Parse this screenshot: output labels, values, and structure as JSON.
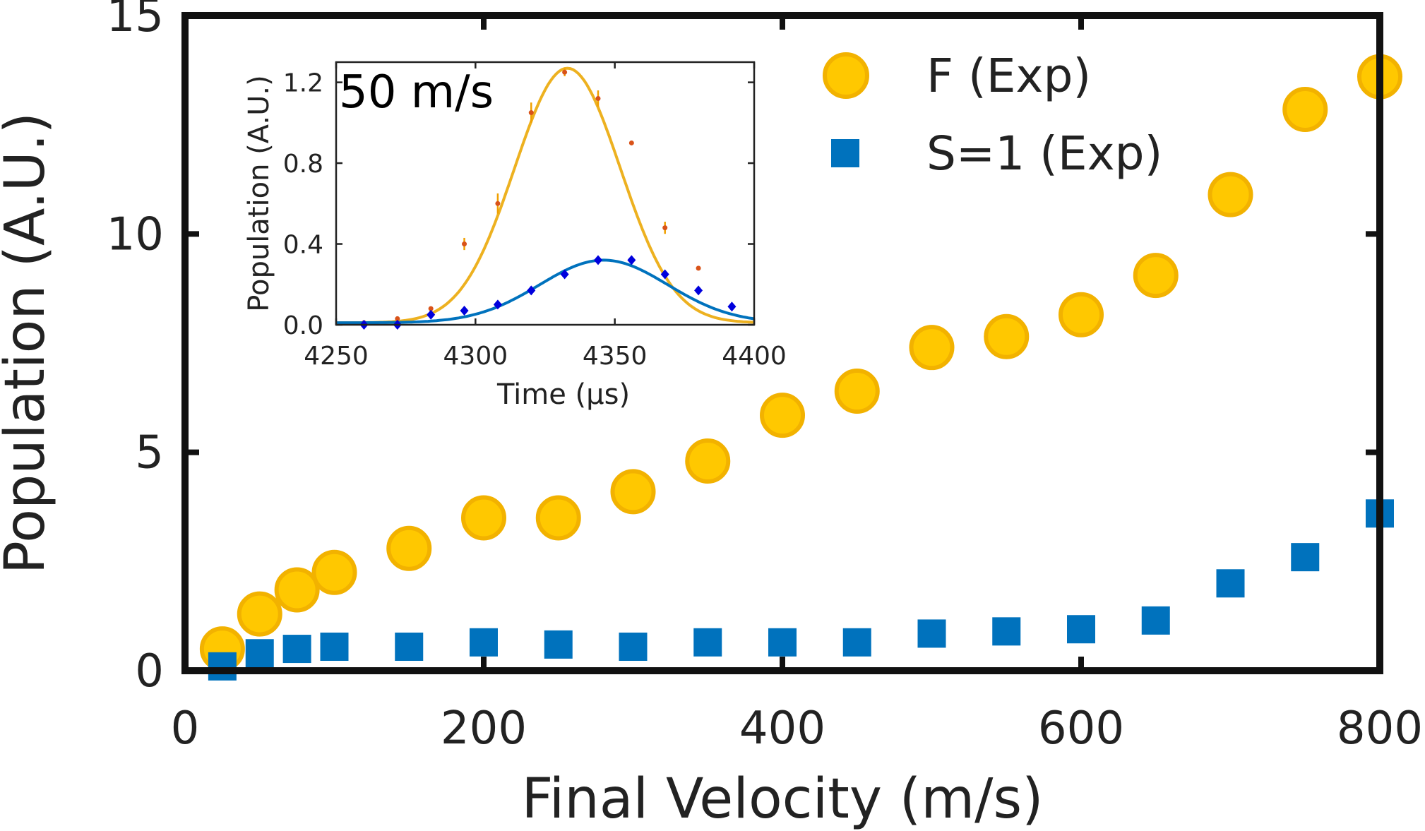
{
  "chart_data": [
    {
      "type": "scatter",
      "xlabel": "Final Velocity (m/s)",
      "ylabel": "Population (A.U.)",
      "xlim": [
        0,
        800
      ],
      "ylim": [
        0,
        15
      ],
      "xticks": [
        0,
        200,
        400,
        600,
        800
      ],
      "yticks": [
        0,
        5,
        10,
        15
      ],
      "legend_position": "top-right",
      "grid": false,
      "series": [
        {
          "name": "F (Exp)",
          "marker": "circle",
          "color": "#FFC800",
          "x": [
            25,
            50,
            75,
            100,
            150,
            200,
            250,
            300,
            350,
            400,
            450,
            500,
            550,
            600,
            650,
            700,
            750,
            800
          ],
          "y": [
            0.5,
            1.3,
            1.85,
            2.25,
            2.8,
            3.5,
            3.5,
            4.1,
            4.8,
            5.85,
            6.4,
            7.4,
            7.65,
            8.15,
            9.05,
            10.9,
            12.85,
            13.6
          ]
        },
        {
          "name": "S=1 (Exp)",
          "marker": "square",
          "color": "#0072BD",
          "x": [
            25,
            50,
            75,
            100,
            150,
            200,
            250,
            300,
            350,
            400,
            450,
            500,
            550,
            600,
            650,
            700,
            750,
            800
          ],
          "y": [
            0.1,
            0.4,
            0.5,
            0.55,
            0.55,
            0.65,
            0.6,
            0.55,
            0.65,
            0.65,
            0.65,
            0.85,
            0.9,
            0.95,
            1.15,
            2.0,
            2.6,
            3.6
          ]
        }
      ]
    },
    {
      "type": "scatter",
      "annotation": "50 m/s",
      "xlabel": "Time (µs)",
      "ylabel": "Population (A.U.)",
      "xlim": [
        4250,
        4400
      ],
      "ylim": [
        0,
        1.3
      ],
      "xticks": [
        4250,
        4300,
        4350,
        4400
      ],
      "yticks": [
        0.0,
        0.4,
        0.8,
        1.2
      ],
      "ytick_labels": [
        "0.0",
        "0.4",
        "0.8",
        "1.2"
      ],
      "series": [
        {
          "marker": "dot",
          "color": "#D95319",
          "fit_color": "#EDB120",
          "x": [
            4260,
            4272,
            4284,
            4296,
            4308,
            4320,
            4332,
            4344,
            4356,
            4368,
            4380,
            4392
          ],
          "y": [
            0.01,
            0.03,
            0.08,
            0.4,
            0.6,
            1.05,
            1.25,
            1.12,
            0.9,
            0.48,
            0.28,
            0.09
          ],
          "err": [
            0.005,
            0.01,
            0.01,
            0.03,
            0.05,
            0.05,
            0.02,
            0.04,
            0.01,
            0.03,
            0.01,
            0.01
          ],
          "fit": {
            "amplitude": 1.26,
            "center": 4333,
            "sigma": 19,
            "offset": 0.01
          }
        },
        {
          "marker": "diamond",
          "color": "#0000DD",
          "fit_color": "#0072BD",
          "x": [
            4260,
            4272,
            4284,
            4296,
            4308,
            4320,
            4332,
            4344,
            4356,
            4368,
            4380,
            4392
          ],
          "y": [
            0.0,
            0.0,
            0.05,
            0.07,
            0.1,
            0.17,
            0.25,
            0.32,
            0.32,
            0.25,
            0.17,
            0.09
          ],
          "err": [
            0.005,
            0.005,
            0.01,
            0.01,
            0.01,
            0.02,
            0.01,
            0.01,
            0.02,
            0.01,
            0.01,
            0.01
          ],
          "fit": {
            "amplitude": 0.31,
            "center": 4346,
            "sigma": 23,
            "offset": 0.01
          }
        }
      ]
    }
  ]
}
